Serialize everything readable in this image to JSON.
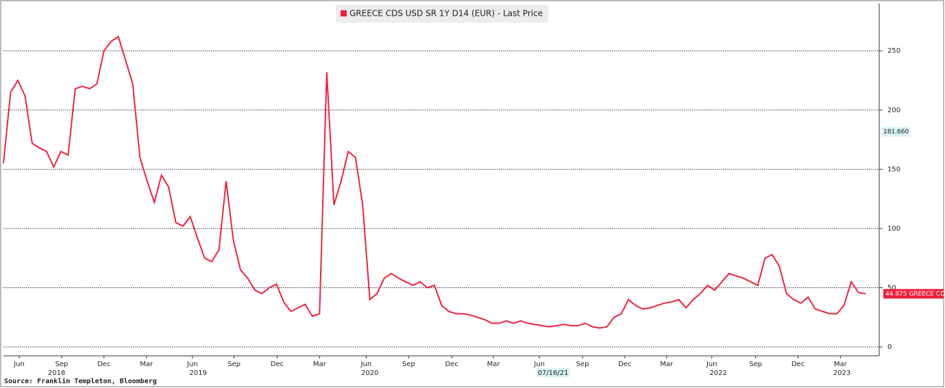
{
  "chart_data": {
    "type": "line",
    "legend": "GREECE CDS USD SR 1Y D14 (EUR) - Last Price",
    "source": "Source: Franklin Templeton, Bloomberg",
    "series": [
      {
        "name": "GREECE CDS USD SR 1Y D14 (EUR) - Last Price",
        "color": "#f0203c",
        "values": [
          155,
          215,
          225,
          212,
          172,
          168,
          165,
          152,
          165,
          162,
          218,
          220,
          218,
          222,
          250,
          258,
          262,
          242,
          222,
          160,
          140,
          122,
          145,
          135,
          105,
          102,
          110,
          92,
          75,
          72,
          82,
          140,
          90,
          65,
          58,
          48,
          45,
          50,
          53,
          38,
          30,
          33,
          36,
          26,
          28,
          232,
          120,
          140,
          165,
          160,
          120,
          40,
          45,
          58,
          62,
          58,
          55,
          52,
          55,
          50,
          52,
          35,
          30,
          28,
          28,
          27,
          25,
          23,
          20,
          20,
          22,
          20,
          22,
          20,
          19,
          18,
          17,
          18,
          19,
          18,
          18,
          20,
          17,
          16,
          17,
          25,
          28,
          40,
          35,
          32,
          33,
          35,
          37,
          38,
          40,
          33,
          40,
          45,
          52,
          48,
          55,
          62,
          60,
          58,
          55,
          52,
          75,
          78,
          68,
          45,
          40,
          37,
          42,
          32,
          30,
          28,
          28,
          35,
          55,
          46,
          44.875
        ]
      }
    ],
    "xlim": [
      0,
      121.9
    ],
    "xticks": [
      {
        "value": 2.2,
        "label": "Jun"
      },
      {
        "value": 8.1,
        "label": "Sep"
      },
      {
        "value": 14,
        "label": "Dec"
      },
      {
        "value": 19.9,
        "label": "Mar"
      },
      {
        "value": 26.3,
        "label": "Jun"
      },
      {
        "value": 32.1,
        "label": "Sep"
      },
      {
        "value": 38.1,
        "label": "Dec"
      },
      {
        "value": 44,
        "label": "Mar"
      },
      {
        "value": 50.5,
        "label": "Jun"
      },
      {
        "value": 56.4,
        "label": "Sep"
      },
      {
        "value": 62.4,
        "label": "Dec"
      },
      {
        "value": 68.2,
        "label": "Mar"
      },
      {
        "value": 74.6,
        "label": "Jun"
      },
      {
        "value": 80.6,
        "label": "Sep"
      },
      {
        "value": 86.5,
        "label": "Dec"
      },
      {
        "value": 92.3,
        "label": "Mar"
      },
      {
        "value": 98.6,
        "label": "Jun"
      },
      {
        "value": 104.7,
        "label": "Sep"
      },
      {
        "value": 110.6,
        "label": "Dec"
      },
      {
        "value": 116.5,
        "label": "Mar"
      }
    ],
    "year_ticks": [
      {
        "value": 7.4,
        "label": "2018"
      },
      {
        "value": 27.1,
        "label": "2019"
      },
      {
        "value": 51,
        "label": "2020"
      },
      {
        "value": 76.5,
        "label": "07/16/21"
      },
      {
        "value": 99.5,
        "label": "2022"
      },
      {
        "value": 116.7,
        "label": "2023"
      }
    ],
    "ylim": [
      -7.5,
      290
    ],
    "yticks": [
      0,
      50,
      100,
      150,
      200,
      250
    ],
    "grid": true,
    "cursor_value": {
      "value": 181.66,
      "label": "181.660"
    },
    "last_label": "44.875 GREECE CD"
  }
}
